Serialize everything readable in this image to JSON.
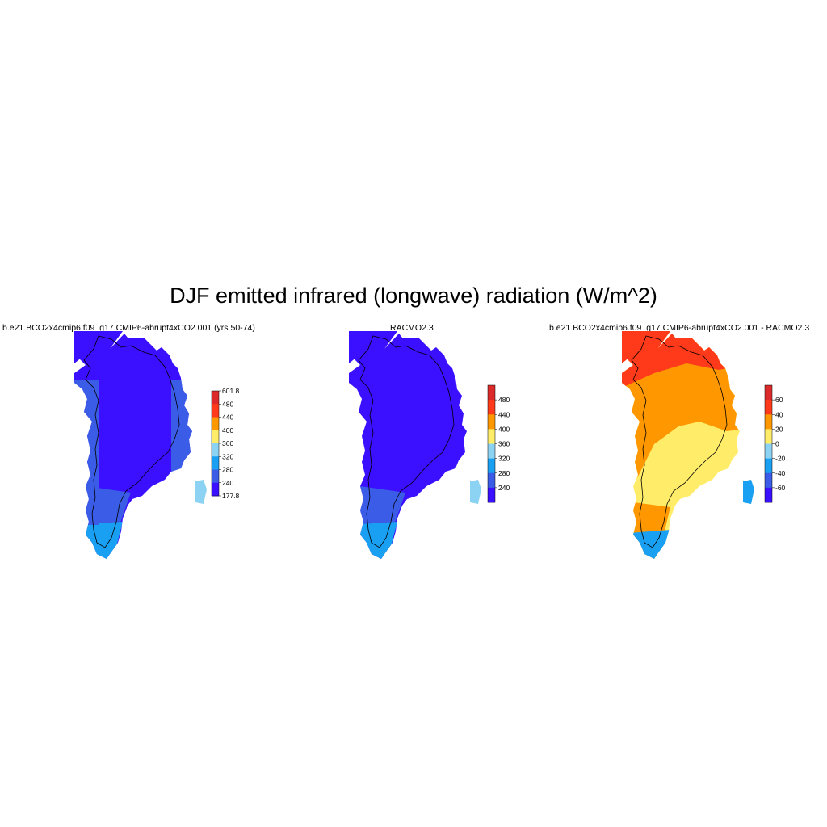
{
  "title": "DJF emitted infrared (longwave) radiation (W/m^2)",
  "palette": [
    "#3b0fff",
    "#3a5ce6",
    "#1aa0f2",
    "#8cd2f2",
    "#ffed6a",
    "#ff9800",
    "#ff3a1a",
    "#dc2a2a"
  ],
  "panels": [
    {
      "title": "b.e21.BCO2x4cmip6.f09_g17.CMIP6-abrupt4xCO2.001 (yrs 50-74)",
      "colorbar": {
        "labels": [
          "601.8",
          "480",
          "440",
          "400",
          "360",
          "320",
          "280",
          "240",
          "177.8"
        ]
      }
    },
    {
      "title": "RACMO2.3",
      "colorbar": {
        "labels": [
          "480",
          "440",
          "400",
          "360",
          "320",
          "280",
          "240"
        ]
      }
    },
    {
      "title": "b.e21.BCO2x4cmip6.f09_g17.CMIP6-abrupt4xCO2.001 - RACMO2.3",
      "colorbar": {
        "labels": [
          "60",
          "40",
          "20",
          "0",
          "-20",
          "-40",
          "-60"
        ]
      }
    }
  ]
}
